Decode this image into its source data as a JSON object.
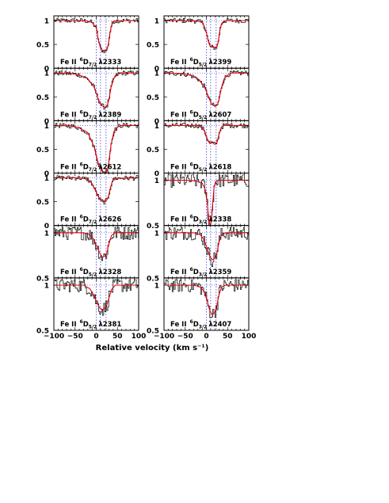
{
  "colors": {
    "data": "#000000",
    "model": "#e8000b",
    "component": "#3a3ad8",
    "frame": "#000000"
  },
  "chart_data": {
    "type": "line",
    "xlabel": "Relative velocity (km s⁻¹)",
    "xlim": [
      -100,
      100
    ],
    "xticks": [
      "−100",
      "−50",
      "0",
      "50",
      "100"
    ],
    "component_velocities": [
      0,
      10,
      23
    ],
    "panels": [
      {
        "id": "p1",
        "col": 0,
        "row": 0,
        "ylim": [
          0,
          1.1
        ],
        "yticks": [
          {
            "v": 1,
            "t": "1"
          },
          {
            "v": 0.5,
            "t": "0.5"
          },
          {
            "v": 0,
            "t": "0"
          }
        ],
        "label": {
          "ion": "Fe II",
          "sup": "6",
          "term": "D",
          "sub": "7/2",
          "line": "λ2333"
        },
        "model": [
          [
            -100,
            1
          ],
          [
            -40,
            1
          ],
          [
            -20,
            0.99
          ],
          [
            -10,
            0.96
          ],
          [
            0,
            0.85
          ],
          [
            5,
            0.6
          ],
          [
            10,
            0.42
          ],
          [
            15,
            0.37
          ],
          [
            20,
            0.36
          ],
          [
            25,
            0.38
          ],
          [
            28,
            0.48
          ],
          [
            32,
            0.72
          ],
          [
            36,
            0.9
          ],
          [
            42,
            0.99
          ],
          [
            50,
            1
          ],
          [
            100,
            1
          ]
        ]
      },
      {
        "id": "p2",
        "col": 1,
        "row": 0,
        "ylim": [
          0,
          1.1
        ],
        "yticks": [
          {
            "v": 1,
            "t": "1"
          },
          {
            "v": 0.5,
            "t": "0.5"
          },
          {
            "v": 0,
            "t": "0"
          }
        ],
        "label": {
          "ion": "Fe II",
          "sup": "6",
          "term": "D",
          "sub": "5/2",
          "line": "λ2399"
        },
        "model": [
          [
            -100,
            1
          ],
          [
            -40,
            1
          ],
          [
            -20,
            0.99
          ],
          [
            -8,
            0.95
          ],
          [
            0,
            0.75
          ],
          [
            5,
            0.55
          ],
          [
            10,
            0.45
          ],
          [
            20,
            0.43
          ],
          [
            25,
            0.45
          ],
          [
            28,
            0.55
          ],
          [
            32,
            0.8
          ],
          [
            36,
            0.94
          ],
          [
            42,
            0.995
          ],
          [
            50,
            1
          ],
          [
            100,
            1
          ]
        ]
      },
      {
        "id": "p3",
        "col": 0,
        "row": 1,
        "ylim": [
          0,
          1.1
        ],
        "yticks": [
          {
            "v": 1,
            "t": "1"
          },
          {
            "v": 0.5,
            "t": "0.5"
          },
          {
            "v": 0,
            "t": "0"
          }
        ],
        "label": {
          "ion": "Fe II",
          "sup": "6",
          "term": "D",
          "sub": "7/2",
          "line": "λ2389"
        },
        "model": [
          [
            -100,
            1
          ],
          [
            -60,
            0.99
          ],
          [
            -40,
            0.96
          ],
          [
            -20,
            0.88
          ],
          [
            -5,
            0.7
          ],
          [
            5,
            0.45
          ],
          [
            12,
            0.32
          ],
          [
            20,
            0.28
          ],
          [
            26,
            0.32
          ],
          [
            30,
            0.45
          ],
          [
            35,
            0.7
          ],
          [
            42,
            0.9
          ],
          [
            52,
            0.98
          ],
          [
            60,
            1
          ],
          [
            100,
            1
          ]
        ]
      },
      {
        "id": "p4",
        "col": 1,
        "row": 1,
        "ylim": [
          0,
          1.1
        ],
        "yticks": [
          {
            "v": 1,
            "t": "1"
          },
          {
            "v": 0.5,
            "t": "0.5"
          },
          {
            "v": 0,
            "t": "0"
          }
        ],
        "label": {
          "ion": "Fe II",
          "sup": "6",
          "term": "D",
          "sub": "5/2",
          "line": "λ2607"
        },
        "model": [
          [
            -100,
            1
          ],
          [
            -60,
            0.99
          ],
          [
            -40,
            0.96
          ],
          [
            -20,
            0.88
          ],
          [
            -5,
            0.72
          ],
          [
            5,
            0.5
          ],
          [
            12,
            0.35
          ],
          [
            20,
            0.3
          ],
          [
            26,
            0.33
          ],
          [
            30,
            0.45
          ],
          [
            35,
            0.68
          ],
          [
            42,
            0.88
          ],
          [
            52,
            0.97
          ],
          [
            60,
            1
          ],
          [
            100,
            1
          ]
        ]
      },
      {
        "id": "p5",
        "col": 0,
        "row": 2,
        "ylim": [
          0,
          1.1
        ],
        "yticks": [
          {
            "v": 1,
            "t": "1"
          },
          {
            "v": 0.5,
            "t": "0.5"
          },
          {
            "v": 0,
            "t": "0"
          }
        ],
        "label": {
          "ion": "Fe II",
          "sup": "6",
          "term": "D",
          "sub": "7/2",
          "line": "λ2612"
        },
        "model": [
          [
            -100,
            1
          ],
          [
            -60,
            0.99
          ],
          [
            -40,
            0.95
          ],
          [
            -20,
            0.85
          ],
          [
            -5,
            0.55
          ],
          [
            5,
            0.2
          ],
          [
            12,
            0.05
          ],
          [
            20,
            0.02
          ],
          [
            26,
            0.05
          ],
          [
            30,
            0.25
          ],
          [
            35,
            0.6
          ],
          [
            42,
            0.88
          ],
          [
            52,
            0.98
          ],
          [
            60,
            1
          ],
          [
            100,
            1
          ]
        ]
      },
      {
        "id": "p6",
        "col": 1,
        "row": 2,
        "ylim": [
          0,
          1.1
        ],
        "yticks": [
          {
            "v": 1,
            "t": "1"
          },
          {
            "v": 0.5,
            "t": "0.5"
          },
          {
            "v": 0,
            "t": "0"
          }
        ],
        "label": {
          "ion": "Fe II",
          "sup": "6",
          "term": "D",
          "sub": "5/2",
          "line": "λ2618"
        },
        "model": [
          [
            -100,
            1
          ],
          [
            -30,
            1
          ],
          [
            -15,
            0.99
          ],
          [
            -5,
            0.9
          ],
          [
            2,
            0.72
          ],
          [
            8,
            0.62
          ],
          [
            14,
            0.64
          ],
          [
            20,
            0.6
          ],
          [
            25,
            0.64
          ],
          [
            30,
            0.82
          ],
          [
            35,
            0.96
          ],
          [
            42,
            1
          ],
          [
            100,
            1
          ]
        ]
      },
      {
        "id": "p7",
        "col": 0,
        "row": 3,
        "ylim": [
          0,
          1.1
        ],
        "yticks": [
          {
            "v": 1,
            "t": "1"
          },
          {
            "v": 0.5,
            "t": "0.5"
          },
          {
            "v": 0,
            "t": "0"
          }
        ],
        "label": {
          "ion": "Fe II",
          "sup": "6",
          "term": "D",
          "sub": "7/2",
          "line": "λ2626"
        },
        "model": [
          [
            -100,
            1
          ],
          [
            -40,
            1
          ],
          [
            -20,
            0.97
          ],
          [
            -10,
            0.88
          ],
          [
            0,
            0.7
          ],
          [
            8,
            0.55
          ],
          [
            15,
            0.5
          ],
          [
            22,
            0.5
          ],
          [
            28,
            0.58
          ],
          [
            33,
            0.78
          ],
          [
            38,
            0.93
          ],
          [
            45,
            0.99
          ],
          [
            100,
            1
          ]
        ]
      },
      {
        "id": "p8",
        "col": 1,
        "row": 3,
        "ylim": [
          0.5,
          1.08
        ],
        "yticks": [
          {
            "v": 1,
            "t": "1"
          },
          {
            "v": 0.5,
            "t": "0.5"
          }
        ],
        "label": {
          "ion": "Fe II",
          "sup": "6",
          "term": "D",
          "sub": "3/2",
          "line": "λ2338"
        },
        "model": [
          [
            -100,
            1
          ],
          [
            -40,
            1
          ],
          [
            -20,
            0.99
          ],
          [
            -10,
            0.97
          ],
          [
            -3,
            0.9
          ],
          [
            2,
            0.75
          ],
          [
            6,
            0.55
          ],
          [
            9,
            0.5
          ],
          [
            12,
            0.55
          ],
          [
            15,
            0.75
          ],
          [
            18,
            0.92
          ],
          [
            22,
            0.99
          ],
          [
            30,
            1
          ],
          [
            100,
            1
          ]
        ]
      },
      {
        "id": "p9",
        "col": 0,
        "row": 4,
        "ylim": [
          0.5,
          1.08
        ],
        "yticks": [
          {
            "v": 1,
            "t": "1"
          },
          {
            "v": 0.5,
            "t": "0.5"
          }
        ],
        "label": {
          "ion": "Fe II",
          "sup": "6",
          "term": "D",
          "sub": "5/2",
          "line": "λ2328"
        },
        "model": [
          [
            -100,
            1
          ],
          [
            -30,
            1
          ],
          [
            -15,
            0.98
          ],
          [
            -5,
            0.92
          ],
          [
            2,
            0.84
          ],
          [
            8,
            0.78
          ],
          [
            14,
            0.73
          ],
          [
            20,
            0.74
          ],
          [
            25,
            0.78
          ],
          [
            30,
            0.88
          ],
          [
            36,
            0.97
          ],
          [
            45,
            1
          ],
          [
            100,
            1
          ]
        ]
      },
      {
        "id": "p10",
        "col": 1,
        "row": 4,
        "ylim": [
          0.5,
          1.08
        ],
        "yticks": [
          {
            "v": 1,
            "t": "1"
          },
          {
            "v": 0.5,
            "t": "0.5"
          }
        ],
        "label": {
          "ion": "Fe II",
          "sup": "6",
          "term": "D",
          "sub": "3/2",
          "line": "λ2359"
        },
        "model": [
          [
            -100,
            1
          ],
          [
            -30,
            1
          ],
          [
            -15,
            0.98
          ],
          [
            -5,
            0.92
          ],
          [
            2,
            0.82
          ],
          [
            8,
            0.74
          ],
          [
            14,
            0.7
          ],
          [
            20,
            0.72
          ],
          [
            25,
            0.78
          ],
          [
            30,
            0.9
          ],
          [
            36,
            0.98
          ],
          [
            45,
            1
          ],
          [
            100,
            1
          ]
        ]
      },
      {
        "id": "p11",
        "col": 0,
        "row": 5,
        "ylim": [
          0.5,
          1.08
        ],
        "yticks": [
          {
            "v": 1,
            "t": "1"
          },
          {
            "v": 0.5,
            "t": "0.5"
          }
        ],
        "label": {
          "ion": "Fe II",
          "sup": "6",
          "term": "D",
          "sub": "5/2",
          "line": "λ2381"
        },
        "model": [
          [
            -100,
            1
          ],
          [
            -30,
            1
          ],
          [
            -15,
            0.96
          ],
          [
            -5,
            0.88
          ],
          [
            2,
            0.8
          ],
          [
            8,
            0.75
          ],
          [
            14,
            0.73
          ],
          [
            20,
            0.74
          ],
          [
            25,
            0.78
          ],
          [
            30,
            0.86
          ],
          [
            36,
            0.95
          ],
          [
            45,
            1
          ],
          [
            100,
            1
          ]
        ]
      },
      {
        "id": "p12",
        "col": 1,
        "row": 5,
        "ylim": [
          0.5,
          1.08
        ],
        "yticks": [
          {
            "v": 1,
            "t": "1"
          },
          {
            "v": 0.5,
            "t": "0.5"
          }
        ],
        "label": {
          "ion": "Fe II",
          "sup": "6",
          "term": "D",
          "sub": "3/2",
          "line": "λ2407"
        },
        "model": [
          [
            -100,
            1
          ],
          [
            -30,
            1
          ],
          [
            -15,
            0.98
          ],
          [
            -5,
            0.93
          ],
          [
            2,
            0.82
          ],
          [
            8,
            0.72
          ],
          [
            14,
            0.67
          ],
          [
            20,
            0.7
          ],
          [
            25,
            0.78
          ],
          [
            30,
            0.9
          ],
          [
            36,
            0.98
          ],
          [
            45,
            1
          ],
          [
            100,
            1
          ]
        ]
      }
    ]
  }
}
